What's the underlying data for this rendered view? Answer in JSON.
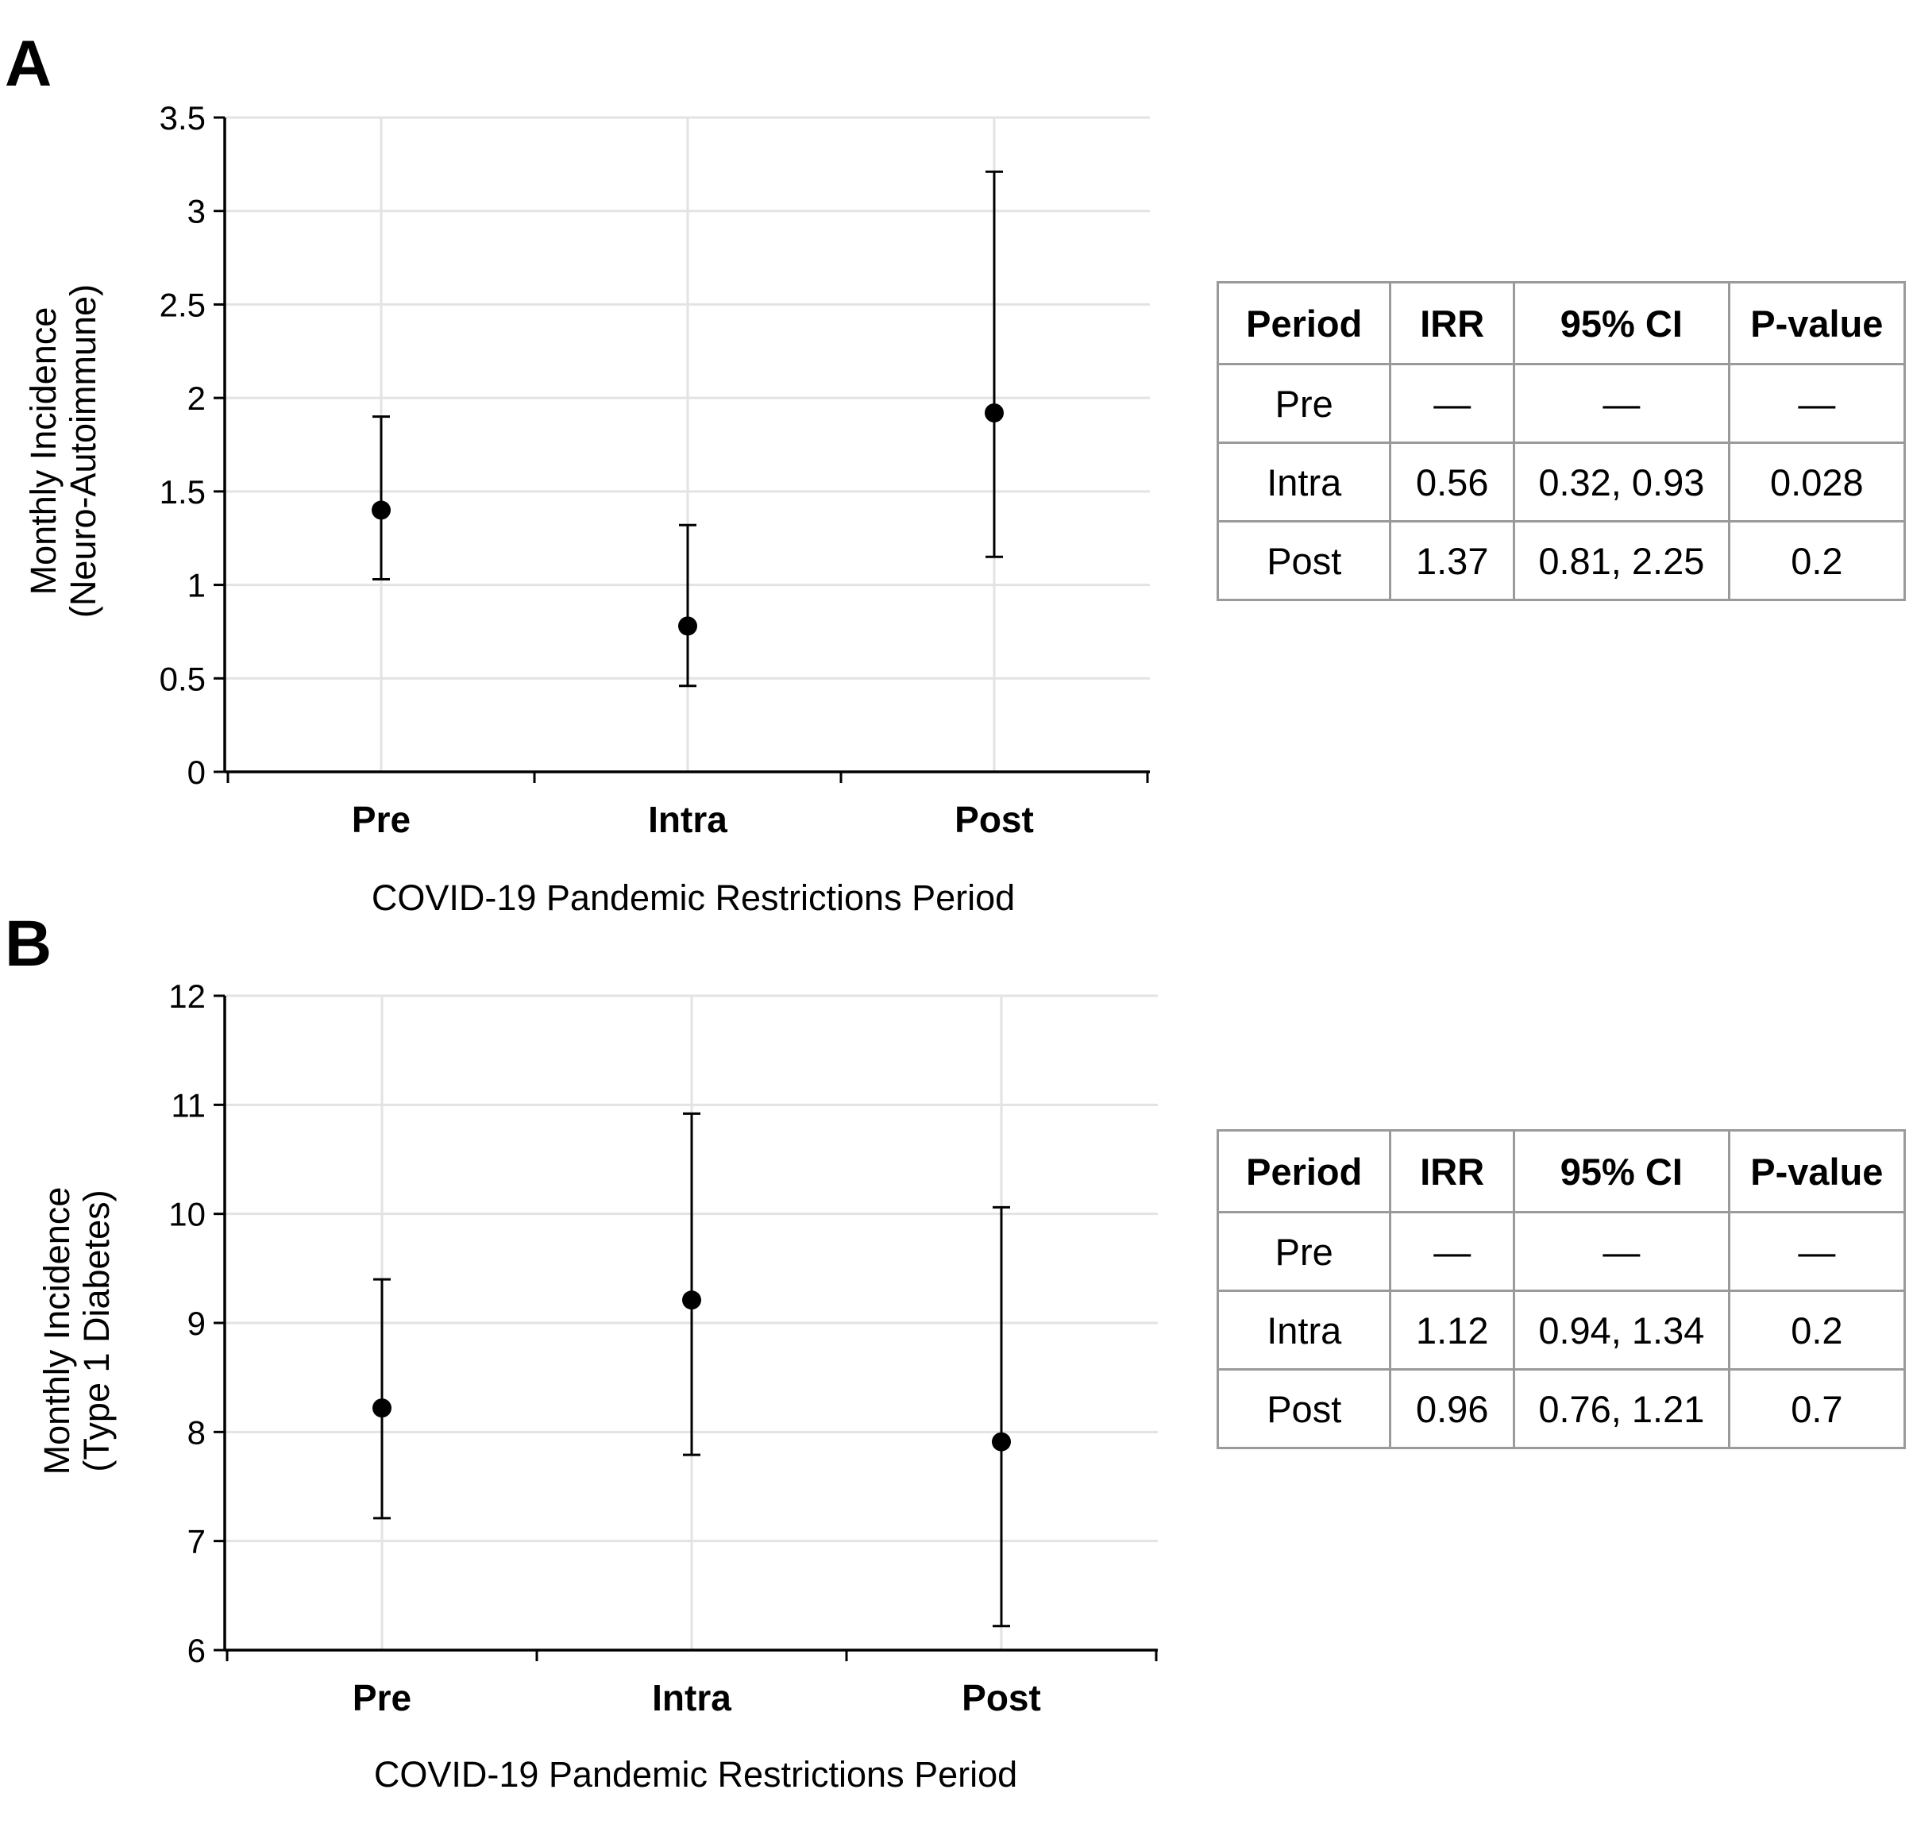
{
  "panels": {
    "a": {
      "letter": "A"
    },
    "b": {
      "letter": "B"
    }
  },
  "chart_data": [
    {
      "type": "scatter",
      "panel": "A",
      "categories": [
        "Pre",
        "Intra",
        "Post"
      ],
      "values": [
        1.4,
        0.78,
        1.92
      ],
      "error_low": [
        1.03,
        0.46,
        1.15
      ],
      "error_high": [
        1.9,
        1.32,
        3.21
      ],
      "ylim": [
        0,
        3.5
      ],
      "yticks": [
        "0",
        "0.5",
        "1",
        "1.5",
        "2",
        "2.5",
        "3",
        "3.5"
      ],
      "ylabel_line1": "Monthly Incidence",
      "ylabel_line2": "(Neuro-Autoimmune)",
      "xlabel": "COVID-19 Pandemic Restrictions Period",
      "grid": true
    },
    {
      "type": "scatter",
      "panel": "B",
      "categories": [
        "Pre",
        "Intra",
        "Post"
      ],
      "values": [
        8.22,
        9.21,
        7.91
      ],
      "error_low": [
        7.21,
        7.79,
        6.22
      ],
      "error_high": [
        9.4,
        10.92,
        10.06
      ],
      "ylim": [
        6,
        12
      ],
      "yticks": [
        "6",
        "7",
        "8",
        "9",
        "10",
        "11",
        "12"
      ],
      "ylabel_line1": "Monthly Incidence",
      "ylabel_line2": "(Type 1 Diabetes)",
      "xlabel": "COVID-19 Pandemic Restrictions Period",
      "grid": true
    }
  ],
  "tables": {
    "a": {
      "headers": [
        "Period",
        "IRR",
        "95% CI",
        "P-value"
      ],
      "rows": [
        [
          "Pre",
          "—",
          "—",
          "—"
        ],
        [
          "Intra",
          "0.56",
          "0.32, 0.93",
          "0.028"
        ],
        [
          "Post",
          "1.37",
          "0.81, 2.25",
          "0.2"
        ]
      ]
    },
    "b": {
      "headers": [
        "Period",
        "IRR",
        "95% CI",
        "P-value"
      ],
      "rows": [
        [
          "Pre",
          "—",
          "—",
          "—"
        ],
        [
          "Intra",
          "1.12",
          "0.94, 1.34",
          "0.2"
        ],
        [
          "Post",
          "0.96",
          "0.76, 1.21",
          "0.7"
        ]
      ]
    }
  }
}
